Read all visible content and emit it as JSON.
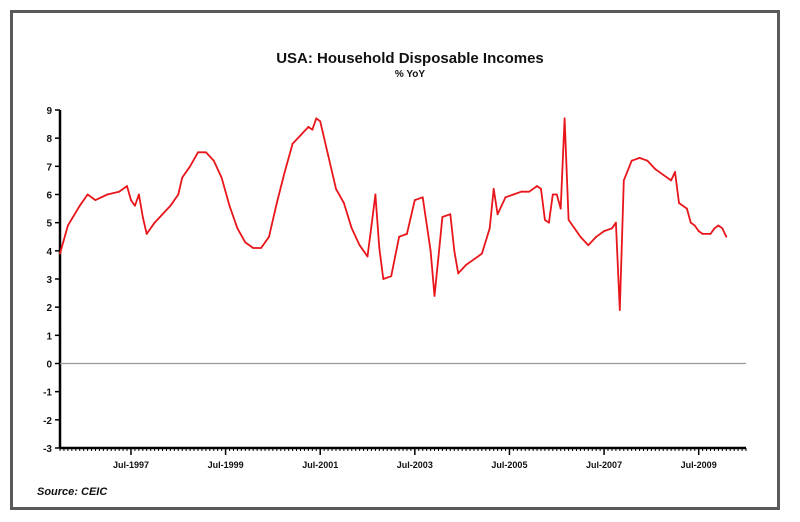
{
  "chart_data": {
    "type": "line",
    "title": "USA: Household Disposable Incomes",
    "subtitle": "% YoY",
    "source": "Source: CEIC",
    "ylim": [
      -3,
      9
    ],
    "yticks": [
      9,
      8,
      7,
      6,
      5,
      4,
      3,
      2,
      1,
      0,
      -1,
      -2,
      -3
    ],
    "xlim": [
      "1996-01",
      "2010-07"
    ],
    "xticks": [
      {
        "date": "1997-07",
        "label": "Jul-1997"
      },
      {
        "date": "1999-07",
        "label": "Jul-1999"
      },
      {
        "date": "2001-07",
        "label": "Jul-2001"
      },
      {
        "date": "2003-07",
        "label": "Jul-2003"
      },
      {
        "date": "2005-07",
        "label": "Jul-2005"
      },
      {
        "date": "2007-07",
        "label": "Jul-2007"
      },
      {
        "date": "2009-07",
        "label": "Jul-2009"
      }
    ],
    "zero_line": true,
    "grid": false,
    "colors": {
      "series": "#e8161b",
      "zero_line": "#9a9a9a",
      "axis": "#000000"
    },
    "series": [
      {
        "points": [
          [
            "1996-01",
            3.9
          ],
          [
            "1996-03",
            4.9
          ],
          [
            "1996-06",
            5.6
          ],
          [
            "1996-08",
            6.0
          ],
          [
            "1996-10",
            5.8
          ],
          [
            "1997-01",
            6.0
          ],
          [
            "1997-04",
            6.1
          ],
          [
            "1997-06",
            6.3
          ],
          [
            "1997-07",
            5.8
          ],
          [
            "1997-08",
            5.6
          ],
          [
            "1997-09",
            6.0
          ],
          [
            "1997-10",
            5.2
          ],
          [
            "1997-11",
            4.6
          ],
          [
            "1998-01",
            5.0
          ],
          [
            "1998-03",
            5.3
          ],
          [
            "1998-05",
            5.6
          ],
          [
            "1998-07",
            6.0
          ],
          [
            "1998-08",
            6.6
          ],
          [
            "1998-10",
            7.0
          ],
          [
            "1998-12",
            7.5
          ],
          [
            "1999-02",
            7.5
          ],
          [
            "1999-04",
            7.2
          ],
          [
            "1999-06",
            6.6
          ],
          [
            "1999-08",
            5.6
          ],
          [
            "1999-10",
            4.8
          ],
          [
            "1999-12",
            4.3
          ],
          [
            "2000-02",
            4.1
          ],
          [
            "2000-04",
            4.1
          ],
          [
            "2000-06",
            4.5
          ],
          [
            "2000-08",
            5.7
          ],
          [
            "2000-10",
            6.8
          ],
          [
            "2000-12",
            7.8
          ],
          [
            "2001-02",
            8.1
          ],
          [
            "2001-04",
            8.4
          ],
          [
            "2001-05",
            8.3
          ],
          [
            "2001-06",
            8.7
          ],
          [
            "2001-07",
            8.6
          ],
          [
            "2001-09",
            7.4
          ],
          [
            "2001-11",
            6.2
          ],
          [
            "2002-01",
            5.7
          ],
          [
            "2002-03",
            4.8
          ],
          [
            "2002-05",
            4.2
          ],
          [
            "2002-07",
            3.8
          ],
          [
            "2002-08",
            4.9
          ],
          [
            "2002-09",
            6.0
          ],
          [
            "2002-10",
            4.1
          ],
          [
            "2002-11",
            3.0
          ],
          [
            "2003-01",
            3.1
          ],
          [
            "2003-03",
            4.5
          ],
          [
            "2003-05",
            4.6
          ],
          [
            "2003-07",
            5.8
          ],
          [
            "2003-09",
            5.9
          ],
          [
            "2003-11",
            4.0
          ],
          [
            "2003-12",
            2.4
          ],
          [
            "2004-01",
            3.8
          ],
          [
            "2004-02",
            5.2
          ],
          [
            "2004-04",
            5.3
          ],
          [
            "2004-05",
            4.0
          ],
          [
            "2004-06",
            3.2
          ],
          [
            "2004-08",
            3.5
          ],
          [
            "2004-10",
            3.7
          ],
          [
            "2004-12",
            3.9
          ],
          [
            "2005-02",
            4.8
          ],
          [
            "2005-03",
            6.2
          ],
          [
            "2005-04",
            5.3
          ],
          [
            "2005-06",
            5.9
          ],
          [
            "2005-08",
            6.0
          ],
          [
            "2005-10",
            6.1
          ],
          [
            "2005-12",
            6.1
          ],
          [
            "2006-02",
            6.3
          ],
          [
            "2006-03",
            6.2
          ],
          [
            "2006-04",
            5.1
          ],
          [
            "2006-05",
            5.0
          ],
          [
            "2006-06",
            6.0
          ],
          [
            "2006-07",
            6.0
          ],
          [
            "2006-08",
            5.5
          ],
          [
            "2006-09",
            8.7
          ],
          [
            "2006-10",
            5.1
          ],
          [
            "2006-12",
            4.7
          ],
          [
            "2007-01",
            4.5
          ],
          [
            "2007-03",
            4.2
          ],
          [
            "2007-05",
            4.5
          ],
          [
            "2007-07",
            4.7
          ],
          [
            "2007-09",
            4.8
          ],
          [
            "2007-10",
            5.0
          ],
          [
            "2007-11",
            1.9
          ],
          [
            "2007-12",
            6.5
          ],
          [
            "2008-02",
            7.2
          ],
          [
            "2008-04",
            7.3
          ],
          [
            "2008-06",
            7.2
          ],
          [
            "2008-08",
            6.9
          ],
          [
            "2008-10",
            6.7
          ],
          [
            "2008-12",
            6.5
          ],
          [
            "2009-01",
            6.8
          ],
          [
            "2009-02",
            5.7
          ],
          [
            "2009-04",
            5.5
          ],
          [
            "2009-05",
            5.0
          ],
          [
            "2009-06",
            4.9
          ],
          [
            "2009-07",
            4.7
          ],
          [
            "2009-08",
            4.6
          ],
          [
            "2009-10",
            4.6
          ],
          [
            "2009-11",
            4.8
          ],
          [
            "2009-12",
            4.9
          ],
          [
            "2010-01",
            4.8
          ],
          [
            "2010-02",
            4.5
          ]
        ]
      }
    ]
  }
}
